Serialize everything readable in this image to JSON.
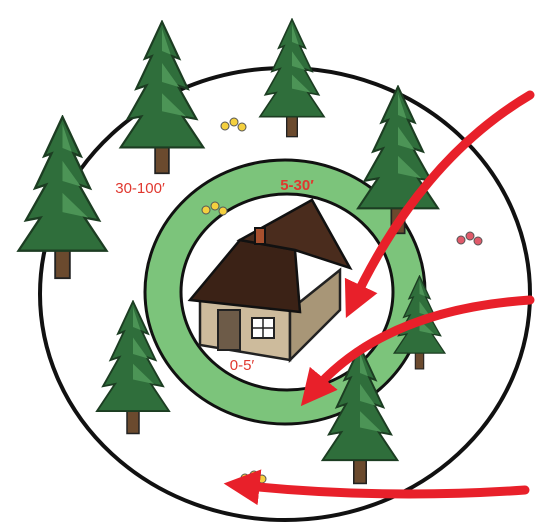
{
  "zones": [
    {
      "label": "0-5′"
    },
    {
      "label": "5-30′"
    },
    {
      "label": "30-100′"
    }
  ]
}
